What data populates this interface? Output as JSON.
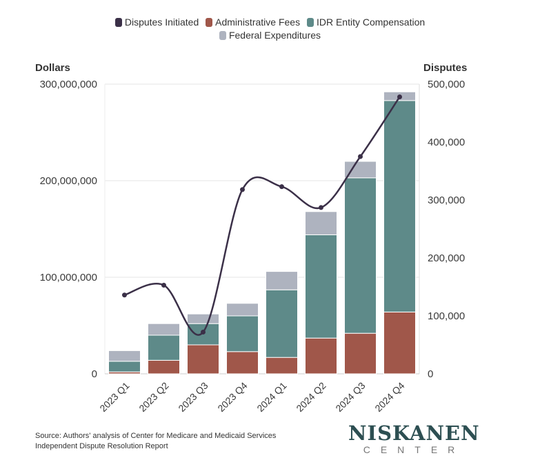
{
  "legend": {
    "disputes": "Disputes Initiated",
    "admin": "Administrative Fees",
    "idr": "IDR Entity Compensation",
    "federal": "Federal Expenditures"
  },
  "axes": {
    "left_title": "Dollars",
    "right_title": "Disputes"
  },
  "source_line1": "Source: Authors' analysis of Center for Medicare and Medicaid Services",
  "source_line2": "Independent Dispute Resolution Report",
  "logo": {
    "main": "NISKANEN",
    "sub": "CENTER"
  },
  "colors": {
    "admin": "#a0574a",
    "idr": "#5e8a89",
    "federal": "#aeb3bf",
    "disputes": "#3b3048",
    "grid": "#e6e6e6",
    "text": "#3a3a3a"
  },
  "chart_data": {
    "type": "bar",
    "stacked": true,
    "categories": [
      "2023 Q1",
      "2023 Q2",
      "2023 Q3",
      "2023 Q4",
      "2024 Q1",
      "2024 Q2",
      "2024 Q3",
      "2024 Q4"
    ],
    "series": [
      {
        "name": "Administrative Fees",
        "axis": "left",
        "values": [
          2000000,
          14000000,
          30000000,
          23000000,
          17000000,
          37000000,
          42000000,
          64000000
        ]
      },
      {
        "name": "IDR Entity Compensation",
        "axis": "left",
        "values": [
          11000000,
          26000000,
          22000000,
          37000000,
          70000000,
          107000000,
          161000000,
          219000000
        ]
      },
      {
        "name": "Federal Expenditures",
        "axis": "left",
        "values": [
          11000000,
          12000000,
          10000000,
          13000000,
          19000000,
          24000000,
          17000000,
          9000000
        ]
      },
      {
        "name": "Disputes Initiated",
        "type": "line",
        "axis": "right",
        "values": [
          136000,
          153000,
          72000,
          318000,
          323000,
          287000,
          375000,
          478000
        ]
      }
    ],
    "yleft": {
      "label": "Dollars",
      "min": 0,
      "max": 300000000,
      "ticks": [
        "0",
        "100,000,000",
        "200,000,000",
        "300,000,000"
      ],
      "tick_values": [
        0,
        100000000,
        200000000,
        300000000
      ]
    },
    "yright": {
      "label": "Disputes",
      "min": 0,
      "max": 500000,
      "ticks": [
        "0",
        "100,000",
        "200,000",
        "300,000",
        "400,000",
        "500,000"
      ],
      "tick_values": [
        0,
        100000,
        200000,
        300000,
        400000,
        500000
      ]
    },
    "legend_position": "top-center"
  }
}
